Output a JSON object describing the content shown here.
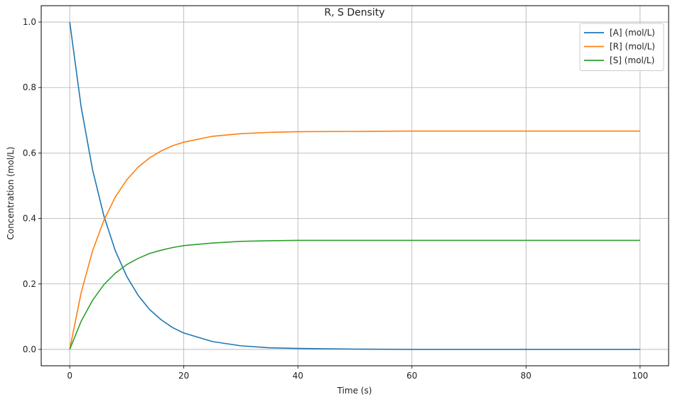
{
  "chart_data": {
    "type": "line",
    "title": "R, S Density",
    "xlabel": "Time (s)",
    "ylabel": "Concentration (mol/L)",
    "xlim": [
      -5,
      105
    ],
    "ylim": [
      -0.05,
      1.05
    ],
    "xticks": [
      0,
      20,
      40,
      60,
      80,
      100
    ],
    "yticks": [
      0.0,
      0.2,
      0.4,
      0.6,
      0.8,
      1.0
    ],
    "xtick_labels": [
      "0",
      "20",
      "40",
      "60",
      "80",
      "100"
    ],
    "ytick_labels": [
      "0.0",
      "0.2",
      "0.4",
      "0.6",
      "0.8",
      "1.0"
    ],
    "grid": true,
    "legend_position": "top-right",
    "x": [
      0,
      2,
      4,
      6,
      8,
      10,
      12,
      14,
      16,
      18,
      20,
      25,
      30,
      35,
      40,
      50,
      60,
      70,
      80,
      90,
      100
    ],
    "series": [
      {
        "name": "[A] (mol/L)",
        "color": "#1f77b4",
        "values": [
          1.0,
          0.741,
          0.549,
          0.407,
          0.301,
          0.223,
          0.165,
          0.122,
          0.091,
          0.067,
          0.05,
          0.024,
          0.011,
          0.005,
          0.003,
          0.001,
          0.0,
          0.0,
          0.0,
          0.0,
          0.0
        ]
      },
      {
        "name": "[R] (mol/L)",
        "color": "#ff7f0e",
        "values": [
          0.0,
          0.173,
          0.301,
          0.395,
          0.466,
          0.518,
          0.557,
          0.585,
          0.606,
          0.622,
          0.633,
          0.651,
          0.659,
          0.663,
          0.665,
          0.666,
          0.667,
          0.667,
          0.667,
          0.667,
          0.667
        ]
      },
      {
        "name": "[S] (mol/L)",
        "color": "#2ca02c",
        "values": [
          0.0,
          0.086,
          0.15,
          0.198,
          0.233,
          0.259,
          0.278,
          0.293,
          0.303,
          0.311,
          0.317,
          0.325,
          0.33,
          0.332,
          0.333,
          0.333,
          0.333,
          0.333,
          0.333,
          0.333,
          0.333
        ]
      }
    ]
  }
}
